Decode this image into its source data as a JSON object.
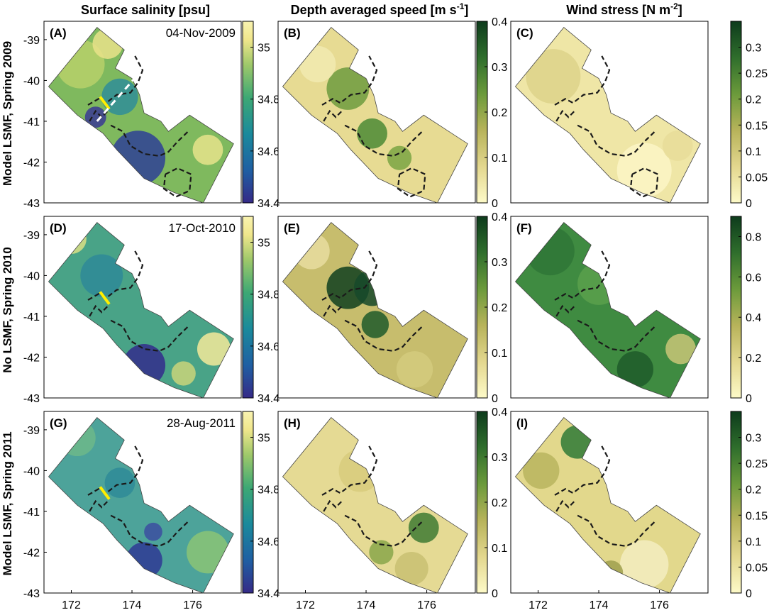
{
  "column_titles": [
    {
      "text": "Surface salinity [psu]"
    },
    {
      "text": "Depth averaged speed [m s",
      "sup": "-1",
      "end": "]"
    },
    {
      "text": "Wind stress [N m",
      "sup": "-2",
      "end": "]"
    }
  ],
  "row_titles": [
    "Model LSMF, Spring 2009",
    "No LSMF, Spring 2010",
    "Model LSMF, Spring 2011"
  ],
  "colors": {
    "salinity_scale": [
      "#352a87",
      "#1f5fa3",
      "#1a8a9c",
      "#3da874",
      "#9ec86a",
      "#f0e68c",
      "#f9f3b0"
    ],
    "speed_scale": [
      "#fdfac8",
      "#e3d78e",
      "#b7b35a",
      "#6b9a3b",
      "#2f6e2c",
      "#0d3b1c"
    ],
    "outline": "#1a1a1a",
    "transect": "#ffee00",
    "transect_dashed": "#ffffff"
  },
  "chart_data": [
    {
      "type": "heatmap",
      "panel": "(A)",
      "variable": "Surface salinity [psu]",
      "date": "04-Nov-2009",
      "row": "Model LSMF, Spring 2009",
      "colorbar": {
        "range": [
          34.4,
          35.1
        ],
        "ticks": [
          "35",
          "34.8",
          "34.6",
          "34.4"
        ]
      },
      "x_ticks": [
        "172",
        "174",
        "176"
      ],
      "y_ticks": [
        "-39",
        "-40",
        "-41",
        "-42",
        "-43"
      ]
    },
    {
      "type": "heatmap",
      "panel": "(B)",
      "variable": "Depth averaged speed",
      "row": "Model LSMF, Spring 2009",
      "colorbar": {
        "range": [
          0,
          0.4
        ],
        "ticks": [
          "0.4",
          "0.3",
          "0.2",
          "0.1",
          "0"
        ]
      }
    },
    {
      "type": "heatmap",
      "panel": "(C)",
      "variable": "Wind stress",
      "row": "Model LSMF, Spring 2009",
      "colorbar": {
        "range": [
          0,
          0.35
        ],
        "ticks": [
          "0.3",
          "0.25",
          "0.2",
          "0.15",
          "0.1",
          "0.05",
          "0"
        ]
      }
    },
    {
      "type": "heatmap",
      "panel": "(D)",
      "variable": "Surface salinity [psu]",
      "date": "17-Oct-2010",
      "row": "No LSMF, Spring 2010",
      "colorbar": {
        "range": [
          34.4,
          35.1
        ],
        "ticks": [
          "35",
          "34.8",
          "34.6",
          "34.4"
        ]
      },
      "x_ticks": [
        "172",
        "174",
        "176"
      ],
      "y_ticks": [
        "-39",
        "-40",
        "-41",
        "-42",
        "-43"
      ]
    },
    {
      "type": "heatmap",
      "panel": "(E)",
      "variable": "Depth averaged speed",
      "row": "No LSMF, Spring 2010",
      "colorbar": {
        "range": [
          0,
          0.4
        ],
        "ticks": [
          "0.4",
          "0.3",
          "0.2",
          "0.1",
          "0"
        ]
      }
    },
    {
      "type": "heatmap",
      "panel": "(F)",
      "variable": "Wind stress",
      "row": "No LSMF, Spring 2010",
      "colorbar": {
        "range": [
          0,
          0.9
        ],
        "ticks": [
          "0.8",
          "0.6",
          "0.4",
          "0.2",
          "0"
        ]
      }
    },
    {
      "type": "heatmap",
      "panel": "(G)",
      "variable": "Surface salinity [psu]",
      "date": "28-Aug-2011",
      "row": "Model LSMF, Spring 2011",
      "colorbar": {
        "range": [
          34.4,
          35.1
        ],
        "ticks": [
          "35",
          "34.8",
          "34.6",
          "34.4"
        ]
      },
      "x_ticks": [
        "172",
        "174",
        "176"
      ],
      "y_ticks": [
        "-39",
        "-40",
        "-41",
        "-42",
        "-43"
      ]
    },
    {
      "type": "heatmap",
      "panel": "(H)",
      "variable": "Depth averaged speed",
      "row": "Model LSMF, Spring 2011",
      "colorbar": {
        "range": [
          0,
          0.4
        ],
        "ticks": [
          "0.4",
          "0.3",
          "0.2",
          "0.1",
          "0"
        ]
      }
    },
    {
      "type": "heatmap",
      "panel": "(I)",
      "variable": "Wind stress",
      "row": "Model LSMF, Spring 2011",
      "colorbar": {
        "range": [
          0,
          0.35
        ],
        "ticks": [
          "0.3",
          "0.25",
          "0.2",
          "0.15",
          "0.1",
          "0.05",
          "0"
        ]
      }
    }
  ]
}
